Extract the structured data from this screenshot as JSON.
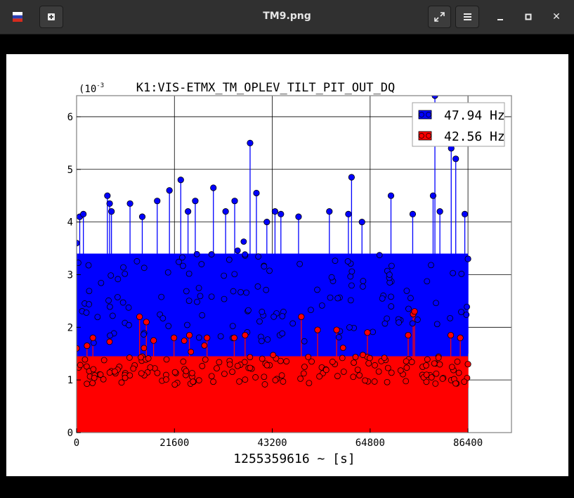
{
  "window": {
    "title": "TM9.png",
    "new_tab_icon": "plus-icon",
    "fullscreen_icon": "expand-icon",
    "menu_icon": "hamburger-menu-icon",
    "minimize_icon": "minimize-icon",
    "maximize_icon": "maximize-icon",
    "close_icon": "close-icon",
    "close_glyph": "✕"
  },
  "chart_data": {
    "type": "scatter",
    "title": "K1:VIS-ETMX_TM_OPLEV_TILT_PIT_OUT_DQ",
    "xlabel": "1255359616 ~ [s]",
    "ylabel": "",
    "y_exponent_label": "(10",
    "y_exponent_power": "-3",
    "xlim": [
      0,
      96000
    ],
    "ylim": [
      0,
      6.4
    ],
    "xticks": [
      0,
      21600,
      43200,
      64800,
      86400
    ],
    "xtick_labels": [
      "0",
      "21600",
      "43200",
      "64800",
      "86400"
    ],
    "yticks": [
      0,
      1,
      2,
      3,
      4,
      5,
      6
    ],
    "ytick_labels": [
      "0",
      "1",
      "2",
      "3",
      "4",
      "5",
      "6"
    ],
    "grid": true,
    "legend_position": "top-right",
    "series": [
      {
        "name": "47.94 Hz",
        "color": "#0000ff",
        "style": "stem",
        "baseline_range": [
          1.5,
          3.4
        ],
        "points": [
          [
            0,
            3.6
          ],
          [
            700,
            4.1
          ],
          [
            1500,
            4.15
          ],
          [
            6800,
            4.5
          ],
          [
            7300,
            4.35
          ],
          [
            7700,
            4.2
          ],
          [
            11800,
            4.35
          ],
          [
            14500,
            4.1
          ],
          [
            17800,
            4.4
          ],
          [
            20500,
            4.6
          ],
          [
            23000,
            4.8
          ],
          [
            24600,
            4.2
          ],
          [
            26200,
            4.4
          ],
          [
            30200,
            4.65
          ],
          [
            32900,
            4.2
          ],
          [
            34900,
            4.4
          ],
          [
            38300,
            5.5
          ],
          [
            39700,
            4.55
          ],
          [
            42000,
            4.0
          ],
          [
            43800,
            4.2
          ],
          [
            45100,
            4.15
          ],
          [
            49000,
            4.1
          ],
          [
            55800,
            4.2
          ],
          [
            60000,
            4.15
          ],
          [
            60700,
            4.85
          ],
          [
            63000,
            4.0
          ],
          [
            69400,
            4.5
          ],
          [
            74200,
            4.15
          ],
          [
            78700,
            4.5
          ],
          [
            79100,
            6.4
          ],
          [
            80200,
            4.2
          ],
          [
            82700,
            5.4
          ],
          [
            83700,
            5.2
          ],
          [
            85700,
            4.15
          ],
          [
            86400,
            3.3
          ]
        ]
      },
      {
        "name": "42.56 Hz",
        "color": "#ff0000",
        "style": "stem",
        "baseline_range": [
          0.85,
          1.45
        ],
        "points": [
          [
            0,
            1.6
          ],
          [
            2300,
            1.65
          ],
          [
            3600,
            1.8
          ],
          [
            13900,
            2.2
          ],
          [
            15400,
            2.1
          ],
          [
            17000,
            1.75
          ],
          [
            21500,
            1.8
          ],
          [
            24900,
            1.85
          ],
          [
            28800,
            1.8
          ],
          [
            34800,
            1.8
          ],
          [
            37200,
            1.85
          ],
          [
            49600,
            2.2
          ],
          [
            53200,
            1.95
          ],
          [
            57400,
            1.95
          ],
          [
            64200,
            1.9
          ],
          [
            73200,
            1.85
          ],
          [
            74300,
            2.25
          ],
          [
            74600,
            2.3
          ],
          [
            82600,
            1.85
          ],
          [
            84700,
            1.8
          ],
          [
            86400,
            1.3
          ]
        ]
      }
    ]
  }
}
